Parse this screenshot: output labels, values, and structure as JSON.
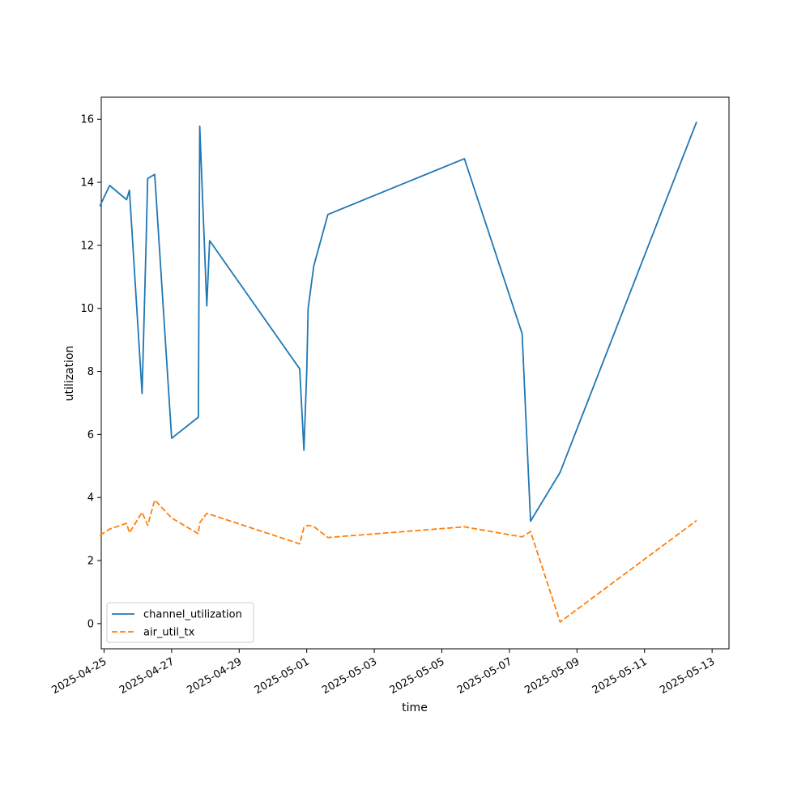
{
  "chart_data": {
    "type": "line",
    "title": "",
    "xlabel": "time",
    "ylabel": "utilization",
    "x_ticks": [
      "2025-04-25",
      "2025-04-27",
      "2025-04-29",
      "2025-05-01",
      "2025-05-03",
      "2025-05-05",
      "2025-05-07",
      "2025-05-09",
      "2025-05-11",
      "2025-05-13"
    ],
    "y_ticks": [
      0,
      2,
      4,
      6,
      8,
      10,
      12,
      14,
      16
    ],
    "ylim": [
      -0.8,
      16.7
    ],
    "xlim": [
      "2025-04-24 22:00",
      "2025-05-13 12:00"
    ],
    "grid": false,
    "legend_position": "lower-left",
    "series": [
      {
        "name": "channel_utilization",
        "color": "#1f77b4",
        "style": "solid",
        "points": [
          [
            "2025-04-24 21:00",
            13.25
          ],
          [
            "2025-04-25 04:00",
            13.9
          ],
          [
            "2025-04-25 16:00",
            13.45
          ],
          [
            "2025-04-25 18:00",
            13.75
          ],
          [
            "2025-04-26 03:00",
            7.3
          ],
          [
            "2025-04-26 06:00",
            12.3
          ],
          [
            "2025-04-26 07:00",
            14.12
          ],
          [
            "2025-04-26 12:00",
            14.25
          ],
          [
            "2025-04-27 00:00",
            5.88
          ],
          [
            "2025-04-27 19:00",
            6.55
          ],
          [
            "2025-04-27 20:00",
            15.78
          ],
          [
            "2025-04-28 01:00",
            10.08
          ],
          [
            "2025-04-28 03:00",
            12.15
          ],
          [
            "2025-04-30 19:00",
            8.08
          ],
          [
            "2025-04-30 22:00",
            5.5
          ],
          [
            "2025-05-01 00:00",
            8.0
          ],
          [
            "2025-05-01 01:00",
            10.0
          ],
          [
            "2025-05-01 05:00",
            11.35
          ],
          [
            "2025-05-01 15:00",
            12.98
          ],
          [
            "2025-05-05 16:00",
            14.75
          ],
          [
            "2025-05-07 09:00",
            9.2
          ],
          [
            "2025-05-07 15:00",
            3.25
          ],
          [
            "2025-05-08 12:00",
            4.8
          ],
          [
            "2025-05-12 13:00",
            15.92
          ]
        ]
      },
      {
        "name": "air_util_tx",
        "color": "#ff7f0e",
        "style": "dashed",
        "points": [
          [
            "2025-04-24 21:00",
            2.8
          ],
          [
            "2025-04-25 04:00",
            3.0
          ],
          [
            "2025-04-25 16:00",
            3.18
          ],
          [
            "2025-04-25 18:00",
            2.88
          ],
          [
            "2025-04-26 03:00",
            3.53
          ],
          [
            "2025-04-26 07:00",
            3.12
          ],
          [
            "2025-04-26 12:00",
            3.92
          ],
          [
            "2025-04-27 00:00",
            3.35
          ],
          [
            "2025-04-27 19:00",
            2.85
          ],
          [
            "2025-04-27 20:00",
            3.2
          ],
          [
            "2025-04-28 01:00",
            3.5
          ],
          [
            "2025-04-30 19:00",
            2.53
          ],
          [
            "2025-04-30 22:00",
            3.05
          ],
          [
            "2025-05-01 01:00",
            3.12
          ],
          [
            "2025-05-01 05:00",
            3.08
          ],
          [
            "2025-05-01 15:00",
            2.73
          ],
          [
            "2025-05-05 16:00",
            3.07
          ],
          [
            "2025-05-07 09:00",
            2.75
          ],
          [
            "2025-05-07 15:00",
            2.92
          ],
          [
            "2025-05-08 12:00",
            0.05
          ],
          [
            "2025-05-12 13:00",
            3.27
          ]
        ]
      }
    ]
  }
}
